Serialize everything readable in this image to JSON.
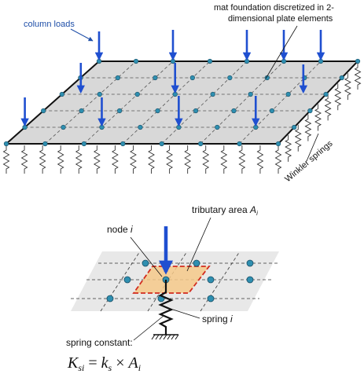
{
  "labels": {
    "column_loads": "column loads",
    "mat_foundation_line1": "mat foundation discretized in 2-",
    "mat_foundation_line2": "dimensional plate elements",
    "winkler_springs": "Winkler springs",
    "tributary_area": "tributary area ",
    "tributary_area_sub": "A",
    "tributary_area_index": "i",
    "node": "node ",
    "node_index": "i",
    "spring": "spring ",
    "spring_index": "i",
    "spring_constant": "spring constant:"
  },
  "formula": {
    "lhs": "K",
    "lhs_sub": "si",
    "eq": " = ",
    "k": "k",
    "k_sub": "s",
    "times": " × ",
    "a": "A",
    "a_sub": "i"
  },
  "colors": {
    "load_arrow": "#1f4fd0",
    "plate_fill": "#d8d8d8",
    "node_fill": "#2f8fb0",
    "tributary_fill": "#f6c98a",
    "tributary_border": "#d22b1f",
    "label_blue": "#1f4fa8"
  }
}
